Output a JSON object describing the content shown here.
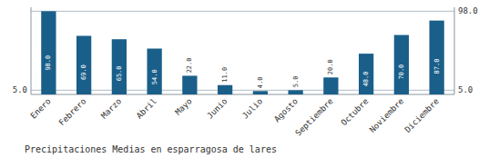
{
  "chart_data": {
    "type": "bar",
    "title": "Precipitaciones Medias en esparragosa de lares",
    "categories": [
      "Enero",
      "Febrero",
      "Marzo",
      "Abril",
      "Mayo",
      "Junio",
      "Julio",
      "Agosto",
      "Septiembre",
      "Octubre",
      "Noviembre",
      "Diciembre"
    ],
    "values": [
      98.0,
      69.0,
      65.0,
      54.0,
      22.0,
      11.0,
      4.0,
      5.0,
      20.0,
      48.0,
      70.0,
      87.0
    ],
    "value_labels": [
      "98.0",
      "69.0",
      "65.0",
      "54.0",
      "22.0",
      "11.0",
      "4.0",
      "5.0",
      "20.0",
      "48.0",
      "70.0",
      "87.0"
    ],
    "color": "#1a5f8a",
    "ylim": [
      0,
      102.65
    ],
    "yticks": [
      {
        "value": 5.0,
        "label": "5.0"
      }
    ],
    "y2lim": [
      0,
      102.65
    ],
    "y2ticks": [
      {
        "value": 5.0,
        "label": "5.0"
      },
      {
        "value": 98.0,
        "label": "98.0"
      }
    ],
    "grid": true,
    "data_labels": true
  }
}
